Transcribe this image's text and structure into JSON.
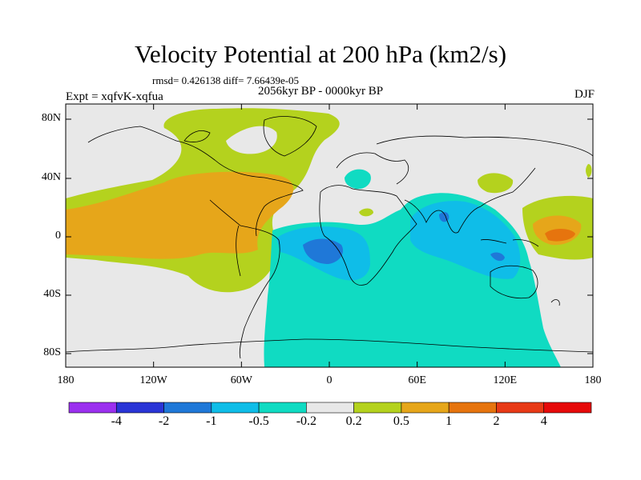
{
  "header": {
    "title": "Velocity Potential at 200 hPa (km2/s)",
    "stats": "rmsd= 0.426138 diff= 7.66439e-05",
    "period": "2056kyr BP - 0000kyr BP",
    "experiment": "Expt = xqfvK-xqfua",
    "season": "DJF"
  },
  "axes": {
    "y_ticks": [
      "80N",
      "40N",
      "0",
      "40S",
      "80S"
    ],
    "x_ticks": [
      "180",
      "120W",
      "60W",
      "0",
      "60E",
      "120E",
      "180"
    ]
  },
  "colorbar": {
    "labels": [
      "-4",
      "-2",
      "-1",
      "-0.5",
      "-0.2",
      "0.2",
      "0.5",
      "1",
      "2",
      "4"
    ],
    "colors": [
      "#9b30ef",
      "#2a35d6",
      "#1f78d8",
      "#0fbde8",
      "#10dbc2",
      "#e8e8e8",
      "#b4d21e",
      "#e6a61a",
      "#e6740e",
      "#e83a16",
      "#e60a0a"
    ]
  },
  "legend_colors": {
    "background": "#e8e8e8",
    "coastline": "#000000"
  }
}
